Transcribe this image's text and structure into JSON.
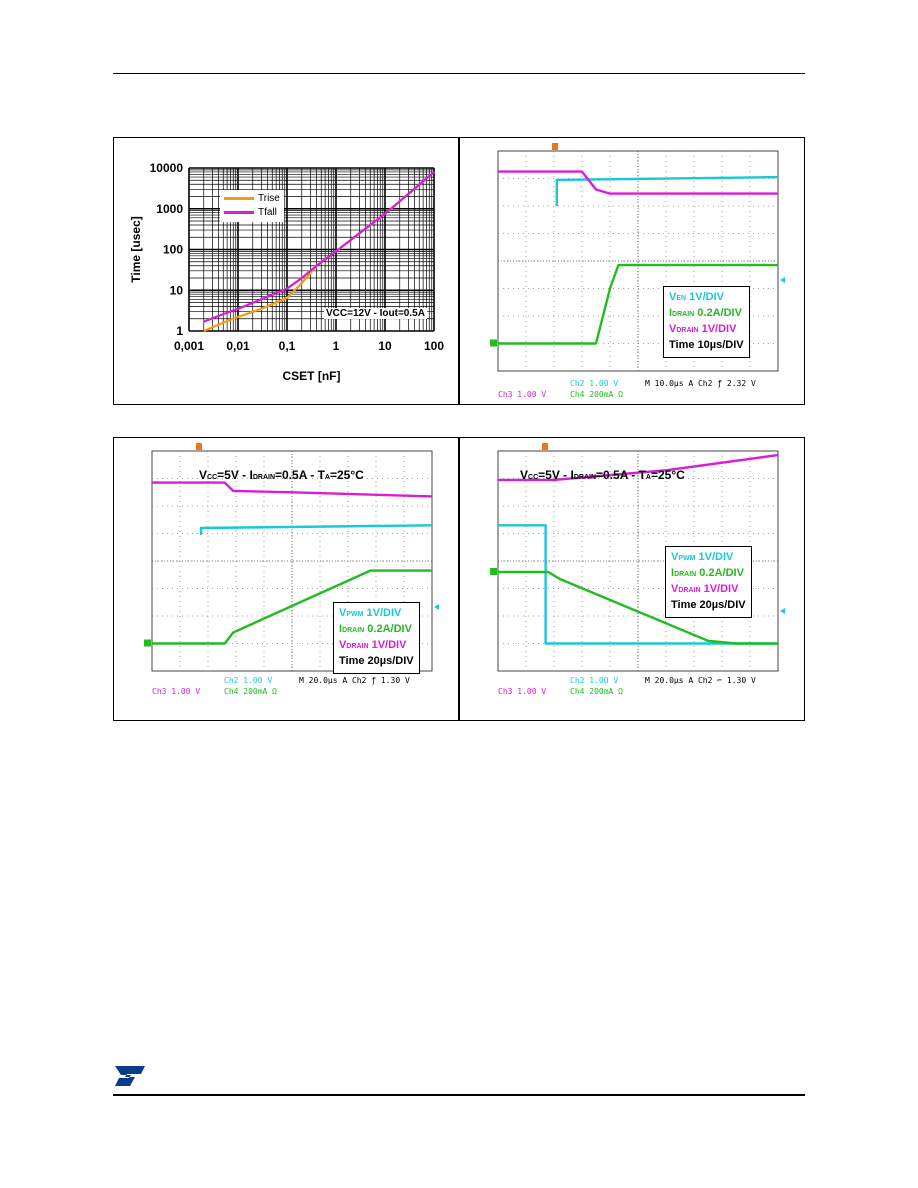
{
  "chart_data": [
    {
      "type": "line",
      "xlabel": "CSET [nF]",
      "ylabel": "Time [usec]",
      "xscale": "log",
      "yscale": "log",
      "xlim": [
        0.001,
        100
      ],
      "ylim": [
        1,
        10000
      ],
      "xticks": [
        "0,001",
        "0,01",
        "0,1",
        "1",
        "10",
        "100"
      ],
      "yticks": [
        "1",
        "10",
        "100",
        "1000",
        "10000"
      ],
      "grid": true,
      "legend_position": "top-left",
      "annotation": "VCC=12V - Iout=0.5A",
      "series": [
        {
          "name": "Trise",
          "color": "#f39c12",
          "x": [
            0.002,
            0.005,
            0.01,
            0.03,
            0.1,
            0.2,
            0.4,
            1,
            3,
            10,
            30,
            100
          ],
          "y": [
            1,
            1.6,
            2.2,
            3.5,
            6.5,
            15,
            40,
            90,
            250,
            750,
            2300,
            8000
          ]
        },
        {
          "name": "Tfall",
          "color": "#d91cd9",
          "x": [
            0.002,
            0.005,
            0.01,
            0.03,
            0.1,
            0.2,
            0.4,
            1,
            3,
            10,
            30,
            100
          ],
          "y": [
            1.7,
            2.6,
            3.5,
            6,
            11,
            20,
            40,
            90,
            250,
            750,
            2300,
            8000
          ]
        }
      ]
    },
    {
      "type": "line",
      "legend": [
        {
          "main": "V",
          "sub": "EN",
          "rest": " 1V/DIV",
          "color": "cyan"
        },
        {
          "main": "I",
          "sub": "DRAIN",
          "rest": " 0.2A/DIV",
          "color": "green"
        },
        {
          "main": "V",
          "sub": "DRAIN",
          "rest": " 1V/DIV",
          "color": "magenta"
        },
        {
          "main": "",
          "sub": "",
          "rest": "Time 10µs/DIV",
          "color": "black"
        }
      ],
      "status": {
        "ch2": "Ch2  1.00 V",
        "m": "M 10.0µs  A  Ch2  ƒ  2.32 V",
        "ch3": "Ch3  1.00 V",
        "ch4": "Ch4  200mA Ω"
      },
      "series": [
        {
          "name": "VEN",
          "color": "#19c8d8",
          "x": [
            2.1,
            2.1,
            10
          ],
          "y": [
            6.0,
            6.95,
            7.05
          ]
        },
        {
          "name": "IDRAIN",
          "color": "#22bb22",
          "x": [
            0,
            3.5,
            4.0,
            4.3,
            10
          ],
          "y": [
            1.0,
            1.0,
            3.0,
            3.85,
            3.85
          ]
        },
        {
          "name": "VDRAIN",
          "color": "#d91cd9",
          "x": [
            0,
            3.0,
            3.5,
            4.0,
            10
          ],
          "y": [
            7.25,
            7.25,
            6.6,
            6.45,
            6.45
          ]
        }
      ]
    },
    {
      "type": "line",
      "conditions": {
        "p1": "V",
        "s1": "CC",
        "p2": "=5V - I",
        "s2": "DRAIN",
        "p3": "=0.5A - T",
        "s3": "A",
        "p4": "=25°C"
      },
      "legend": [
        {
          "main": "V",
          "sub": "PWM",
          "rest": " 1V/DIV",
          "color": "cyan"
        },
        {
          "main": "I",
          "sub": "DRAIN",
          "rest": " 0.2A/DIV",
          "color": "green"
        },
        {
          "main": "V",
          "sub": "DRAIN",
          "rest": " 1V/DIV",
          "color": "magenta"
        },
        {
          "main": "",
          "sub": "",
          "rest": "Time 20µs/DIV",
          "color": "black"
        }
      ],
      "status": {
        "ch2": "Ch2  1.00 V",
        "m": "M 20.0µs  A  Ch2  ƒ  1.30 V",
        "ch3": "Ch3  1.00 V",
        "ch4": "Ch4  200mA Ω"
      },
      "series": [
        {
          "name": "VPWM",
          "color": "#19c8d8",
          "x": [
            1.75,
            1.75,
            10
          ],
          "y": [
            4.95,
            5.2,
            5.3
          ]
        },
        {
          "name": "IDRAIN",
          "color": "#22bb22",
          "x": [
            0,
            2.6,
            2.9,
            7.8,
            10
          ],
          "y": [
            1.0,
            1.0,
            1.4,
            3.65,
            3.65
          ]
        },
        {
          "name": "VDRAIN",
          "color": "#d91cd9",
          "x": [
            0,
            2.6,
            2.9,
            5.0,
            10
          ],
          "y": [
            6.85,
            6.85,
            6.55,
            6.5,
            6.35
          ]
        }
      ]
    },
    {
      "type": "line",
      "conditions": {
        "p1": "V",
        "s1": "CC",
        "p2": "=5V - I",
        "s2": "DRAIN",
        "p3": "=0.5A - T",
        "s3": "A",
        "p4": "=25°C"
      },
      "legend": [
        {
          "main": "V",
          "sub": "PWM",
          "rest": " 1V/DIV",
          "color": "cyan"
        },
        {
          "main": "I",
          "sub": "DRAIN",
          "rest": " 0.2A/DIV",
          "color": "green"
        },
        {
          "main": "V",
          "sub": "DRAIN",
          "rest": " 1V/DIV",
          "color": "magenta"
        },
        {
          "main": "",
          "sub": "",
          "rest": "Time 20µs/DIV",
          "color": "black"
        }
      ],
      "status": {
        "ch2": "Ch2  1.00 V",
        "m": "M 20.0µs  A  Ch2  ⌐  1.30 V",
        "ch3": "Ch3  1.00 V",
        "ch4": "Ch4  200mA Ω"
      },
      "series": [
        {
          "name": "VPWM",
          "color": "#19c8d8",
          "x": [
            0,
            1.7,
            1.7,
            10
          ],
          "y": [
            5.3,
            5.3,
            1.0,
            1.0
          ]
        },
        {
          "name": "IDRAIN",
          "color": "#22bb22",
          "x": [
            0,
            1.8,
            2.2,
            7.5,
            8.5,
            10
          ],
          "y": [
            3.6,
            3.6,
            3.35,
            1.1,
            1.0,
            1.0
          ]
        },
        {
          "name": "VDRAIN",
          "color": "#d91cd9",
          "x": [
            0,
            2.0,
            6.0,
            10
          ],
          "y": [
            6.95,
            6.95,
            7.3,
            7.85
          ]
        }
      ]
    }
  ]
}
